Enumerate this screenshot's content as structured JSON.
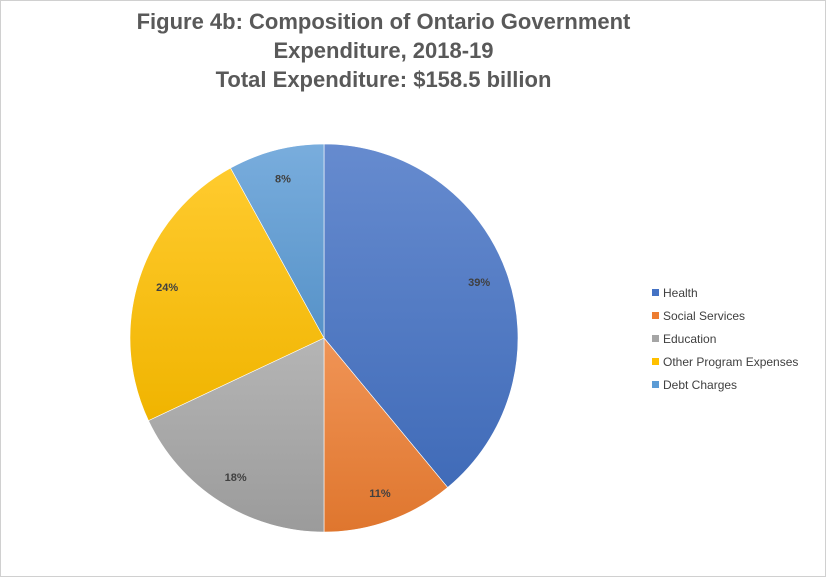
{
  "chart_data": {
    "type": "pie",
    "title": {
      "line1": "Figure 4b: Composition of Ontario Government",
      "line2": "Expenditure, 2018-19",
      "line3": "Total Expenditure: $158.5 billion"
    },
    "slices": [
      {
        "name": "Health",
        "value": 39,
        "label": "39%",
        "color": "#4472C4"
      },
      {
        "name": "Social Services",
        "value": 11,
        "label": "11%",
        "color": "#ED7D31"
      },
      {
        "name": "Education",
        "value": 18,
        "label": "18%",
        "color": "#A5A5A5"
      },
      {
        "name": "Other Program Expenses",
        "value": 24,
        "label": "24%",
        "color": "#FFC000"
      },
      {
        "name": "Debt Charges",
        "value": 8,
        "label": "8%",
        "color": "#5B9BD5"
      }
    ],
    "legend_position": "right"
  }
}
